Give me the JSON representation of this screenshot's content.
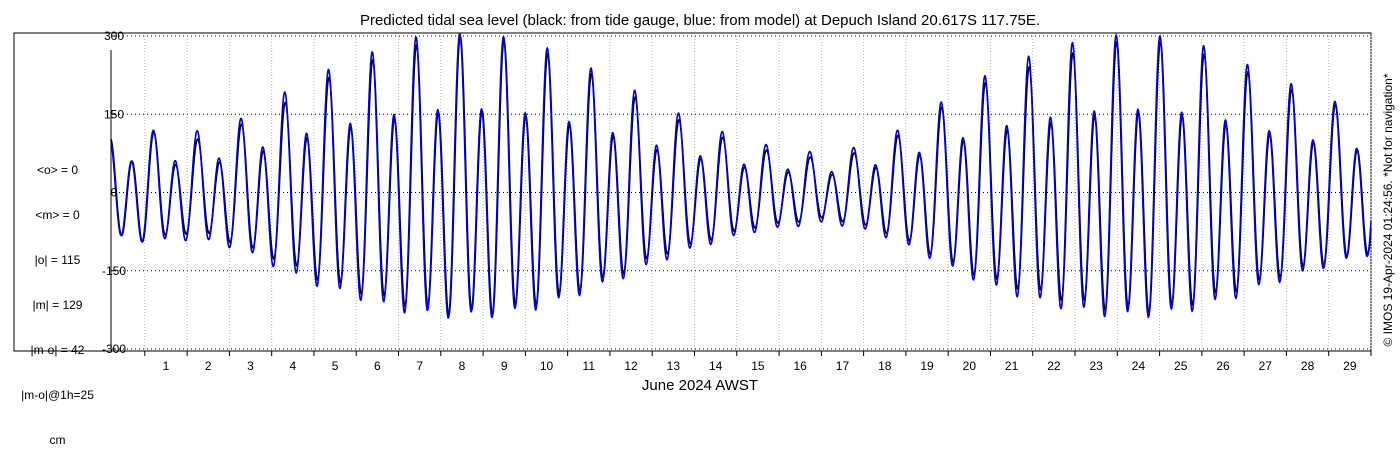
{
  "chart_data": {
    "type": "line",
    "title": "Predicted tidal sea level (black: from tide gauge, blue: from model) at Depuch Island 20.617S 117.75E.",
    "xlabel": "June 2024 AWST",
    "ylabel": "",
    "xlim": [
      0.2,
      30
    ],
    "ylim": [
      -300,
      300
    ],
    "x_ticks": [
      1,
      2,
      3,
      4,
      5,
      6,
      7,
      8,
      9,
      10,
      11,
      12,
      13,
      14,
      15,
      16,
      17,
      18,
      19,
      20,
      21,
      22,
      23,
      24,
      25,
      26,
      27,
      28,
      29
    ],
    "y_ticks": [
      -300,
      -150,
      0,
      150,
      300
    ],
    "grid": true,
    "series": [
      {
        "name": "tide gauge",
        "color": "#000000",
        "amplitude_by_day": [
          100,
          115,
          95,
          100,
          130,
          160,
          200,
          225,
          250,
          270,
          285,
          285,
          270,
          250,
          220,
          190,
          150,
          125,
          100,
          80,
          70,
          60,
          75,
          100,
          140,
          180,
          210,
          230,
          250,
          270,
          280,
          275,
          255,
          230,
          205,
          180,
          160,
          140
        ]
      },
      {
        "name": "model",
        "color": "#0000cc",
        "amplitude_by_day": [
          100,
          115,
          110,
          115,
          140,
          180,
          215,
          240,
          265,
          285,
          290,
          290,
          280,
          260,
          230,
          200,
          165,
          135,
          110,
          90,
          80,
          70,
          85,
          110,
          150,
          190,
          225,
          250,
          270,
          285,
          290,
          285,
          270,
          245,
          215,
          190,
          165,
          145
        ]
      }
    ],
    "stats_text": [
      "<o> = 0",
      "<m> = 0",
      "|o| = 115",
      "|m| = 129",
      "|m-o| = 42",
      "|m-o|@1h=25",
      "cm"
    ],
    "side_note": "© IMOS 19-Apr-2024 01:24:56. *Not for navigation*"
  }
}
